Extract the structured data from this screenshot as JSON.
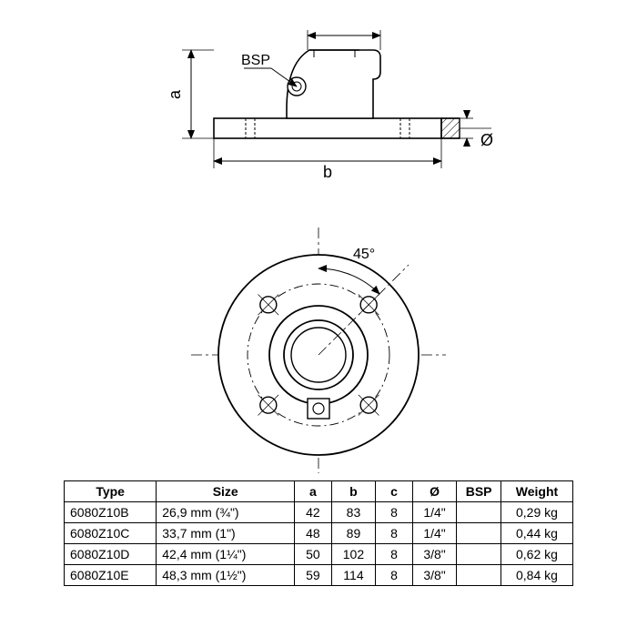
{
  "diagram": {
    "side_view": {
      "label_bsp": "BSP",
      "label_a": "a",
      "label_b": "b",
      "label_diameter": "Ø",
      "stroke": "#000000",
      "stroke_width": 1.5,
      "fill": "#ffffff"
    },
    "top_view": {
      "angle_label": "45°",
      "stroke": "#000000",
      "stroke_width": 1.5
    }
  },
  "table": {
    "headers": {
      "type": "Type",
      "size": "Size",
      "a": "a",
      "b": "b",
      "c": "c",
      "diameter": "Ø",
      "bsp": "BSP",
      "weight": "Weight"
    },
    "rows": [
      {
        "type": "6080Z10B",
        "size": "26,9 mm (¾\")",
        "a": "42",
        "b": "83",
        "c": "8",
        "d": "1/4\"",
        "bsp": "",
        "w": "0,29 kg"
      },
      {
        "type": "6080Z10C",
        "size": "33,7 mm (1\")",
        "a": "48",
        "b": "89",
        "c": "8",
        "d": "1/4\"",
        "bsp": "",
        "w": "0,44 kg"
      },
      {
        "type": "6080Z10D",
        "size": "42,4 mm (1¼\")",
        "a": "50",
        "b": "102",
        "c": "8",
        "d": "3/8\"",
        "bsp": "",
        "w": "0,62 kg"
      },
      {
        "type": "6080Z10E",
        "size": "48,3 mm (1½\")",
        "a": "59",
        "b": "114",
        "c": "8",
        "d": "3/8\"",
        "bsp": "",
        "w": "0,84 kg"
      }
    ]
  }
}
